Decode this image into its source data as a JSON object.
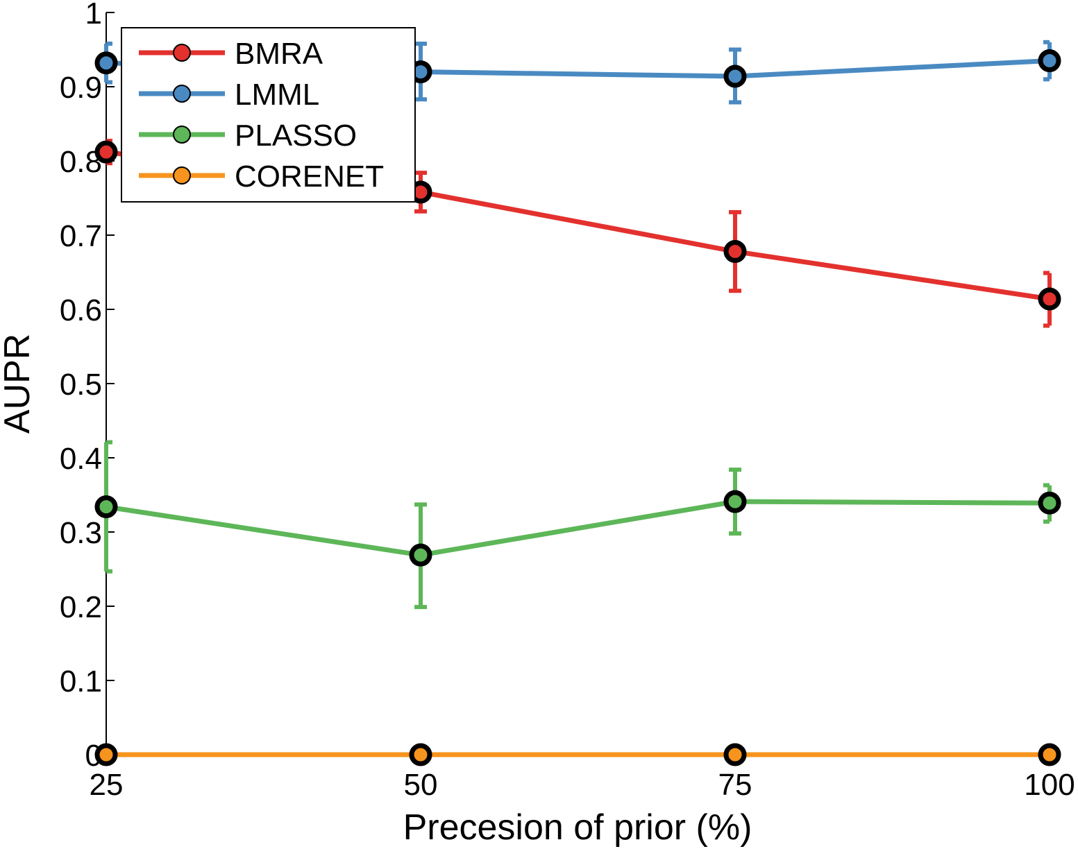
{
  "chart_data": {
    "type": "line",
    "title": "",
    "xlabel": "Precesion of prior (%)",
    "ylabel": "AUPR",
    "x": [
      25,
      50,
      75,
      100
    ],
    "x_tick_labels": [
      "25",
      "50",
      "75",
      "100"
    ],
    "y_tick_labels": [
      "0",
      "0.1",
      "0.2",
      "0.3",
      "0.4",
      "0.5",
      "0.6",
      "0.7",
      "0.8",
      "0.9",
      "1"
    ],
    "y_ticks": [
      0,
      0.1,
      0.2,
      0.3,
      0.4,
      0.5,
      0.6,
      0.7,
      0.8,
      0.9,
      1
    ],
    "xlim": [
      25,
      100
    ],
    "ylim": [
      0,
      1
    ],
    "grid": false,
    "legend_position": "top-left",
    "series": [
      {
        "name": "BMRA",
        "color": "#e3312e",
        "values": [
          0.812,
          0.758,
          0.678,
          0.614
        ],
        "err_low": [
          0.797,
          0.732,
          0.625,
          0.578
        ],
        "err_high": [
          0.827,
          0.784,
          0.731,
          0.649
        ]
      },
      {
        "name": "LMML",
        "color": "#4a8ac2",
        "values": [
          0.932,
          0.92,
          0.914,
          0.935
        ],
        "err_low": [
          0.906,
          0.883,
          0.879,
          0.91
        ],
        "err_high": [
          0.958,
          0.958,
          0.95,
          0.96
        ]
      },
      {
        "name": "PLASSO",
        "color": "#5db658",
        "values": [
          0.334,
          0.269,
          0.341,
          0.339
        ],
        "err_low": [
          0.247,
          0.199,
          0.298,
          0.314
        ],
        "err_high": [
          0.421,
          0.337,
          0.384,
          0.363
        ]
      },
      {
        "name": "CORENET",
        "color": "#f7941d",
        "values": [
          0.0,
          0.0,
          0.0,
          0.0
        ],
        "err_low": [
          0.0,
          0.0,
          0.0,
          0.0
        ],
        "err_high": [
          0.0,
          0.0,
          0.0,
          0.0
        ]
      }
    ]
  }
}
